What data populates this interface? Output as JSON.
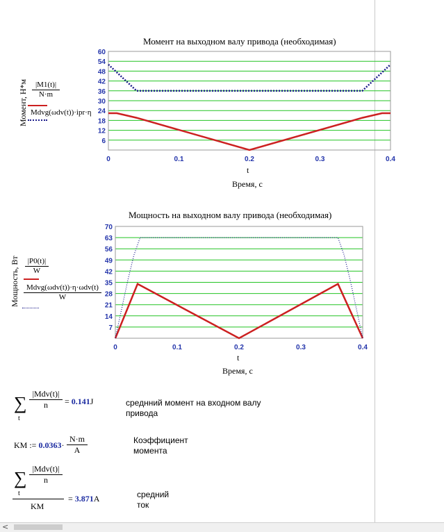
{
  "chart_data": [
    {
      "type": "line",
      "title": "Момент на выходном валу привода (необходимая)",
      "xlabel": "Время, с",
      "x_var": "t",
      "ylabel": "Момент, Н*м",
      "xlim": [
        0,
        0.4
      ],
      "ylim": [
        0,
        60
      ],
      "xticks": [
        "0",
        "0.1",
        "0.2",
        "0.3",
        "0.4"
      ],
      "yticks": [
        "6",
        "12",
        "18",
        "24",
        "30",
        "36",
        "42",
        "48",
        "54",
        "60"
      ],
      "grid": true,
      "series": [
        {
          "legend_num": "|M1(t)|",
          "legend_den": "N·m",
          "color": "#cc2020",
          "style": "solid",
          "x": [
            0,
            0.012,
            0.04,
            0.2,
            0.36,
            0.388,
            0.4
          ],
          "y": [
            22.4,
            22.4,
            19.6,
            0,
            19.6,
            22.4,
            22.4
          ]
        },
        {
          "legend_num": "Mdvg(ωdv(t))·ipr·η",
          "legend_den": "",
          "color": "#1a1a8a",
          "style": "dotted",
          "x": [
            0,
            0.04,
            0.36,
            0.4
          ],
          "y": [
            52,
            36,
            36,
            52
          ]
        }
      ]
    },
    {
      "type": "line",
      "title": "Мощность на выходном валу привода (необходимая)",
      "xlabel": "Время, с",
      "x_var": "t",
      "ylabel": "Мощность, Вт",
      "xlim": [
        0,
        0.4
      ],
      "ylim": [
        0,
        70
      ],
      "xticks": [
        "0",
        "0.1",
        "0.2",
        "0.3",
        "0.4"
      ],
      "yticks": [
        "7",
        "14",
        "21",
        "28",
        "35",
        "42",
        "49",
        "56",
        "63",
        "70"
      ],
      "grid": true,
      "series": [
        {
          "legend_num": "|P0(t)|",
          "legend_den": "W",
          "color": "#cc2020",
          "style": "solid",
          "x": [
            0,
            0.036,
            0.2,
            0.36,
            0.4
          ],
          "y": [
            0,
            34,
            0,
            34,
            0
          ]
        },
        {
          "legend_num": "Mdvg(ωdv(t))·η·ωdv(t)",
          "legend_den": "W",
          "color": "#1a1a8a",
          "style": "dotted",
          "x": [
            0,
            0.01,
            0.02,
            0.03,
            0.04,
            0.36,
            0.37,
            0.38,
            0.39,
            0.4
          ],
          "y": [
            0,
            18,
            36,
            52,
            63,
            63,
            52,
            36,
            18,
            0
          ]
        }
      ]
    }
  ],
  "worksheet": {
    "eq1": {
      "numerator": "|Mdv(t)|",
      "denominator": "n",
      "sum_index": "t",
      "result": "0.141",
      "unit": "J"
    },
    "comment1": [
      "среднний момент на входном валу",
      "привода"
    ],
    "eq2": {
      "lhs": "KM",
      "op": ":=",
      "value": "0.0363",
      "unit_num": "N·m",
      "unit_den": "A"
    },
    "comment2": [
      "Коэффициент",
      "момента"
    ],
    "eq3": {
      "numerator": "|Mdv(t)|",
      "denominator": "n",
      "sum_index": "t",
      "divisor": "KM",
      "result": "3.871",
      "unit": "A"
    },
    "comment3": [
      "средний",
      "ток"
    ]
  },
  "scrollbar": {
    "left_arrow": "<"
  }
}
